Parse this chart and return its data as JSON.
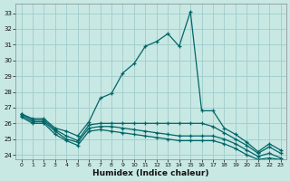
{
  "xlabel": "Humidex (Indice chaleur)",
  "bg_color": "#c8e8e4",
  "grid_color": "#a0cccc",
  "line_color": "#006666",
  "xlim": [
    -0.5,
    23.5
  ],
  "ylim": [
    23.7,
    33.6
  ],
  "xtick_vals": [
    0,
    1,
    2,
    3,
    4,
    5,
    6,
    7,
    8,
    9,
    10,
    11,
    12,
    13,
    14,
    15,
    16,
    17,
    18,
    19,
    20,
    21,
    22,
    23
  ],
  "ytick_vals": [
    24,
    25,
    26,
    27,
    28,
    29,
    30,
    31,
    32,
    33
  ],
  "series": [
    [
      26.6,
      26.3,
      26.3,
      25.7,
      25.5,
      25.2,
      26.1,
      27.6,
      27.9,
      29.2,
      29.8,
      30.9,
      31.2,
      31.7,
      30.9,
      33.1,
      26.8,
      26.8,
      25.7,
      25.3,
      24.8,
      24.2,
      24.7,
      24.3
    ],
    [
      26.6,
      26.2,
      26.2,
      25.6,
      25.2,
      24.9,
      25.9,
      26.0,
      26.0,
      26.0,
      26.0,
      26.0,
      26.0,
      26.0,
      26.0,
      26.0,
      26.0,
      25.8,
      25.4,
      25.0,
      24.6,
      24.1,
      24.5,
      24.1
    ],
    [
      26.5,
      26.1,
      26.1,
      25.5,
      25.0,
      24.8,
      25.7,
      25.8,
      25.8,
      25.7,
      25.6,
      25.5,
      25.4,
      25.3,
      25.2,
      25.2,
      25.2,
      25.2,
      25.0,
      24.7,
      24.3,
      23.9,
      24.1,
      23.8
    ],
    [
      26.4,
      26.0,
      26.0,
      25.3,
      24.9,
      24.6,
      25.5,
      25.6,
      25.5,
      25.4,
      25.3,
      25.2,
      25.1,
      25.0,
      24.9,
      24.9,
      24.9,
      24.9,
      24.7,
      24.4,
      24.0,
      23.7,
      23.8,
      23.7
    ]
  ]
}
